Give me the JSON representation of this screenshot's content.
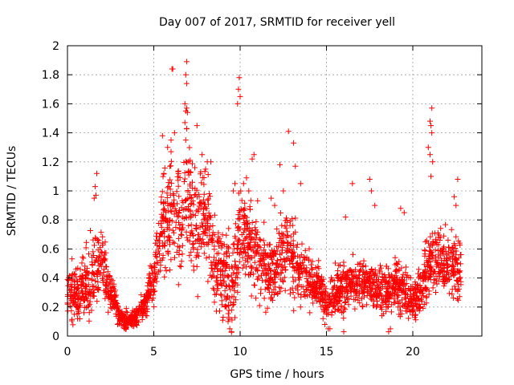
{
  "chart_data": {
    "type": "scatter",
    "title": "Day 007 of 2017, SRMTID for receiver yell",
    "xlabel": "GPS time / hours",
    "ylabel": "SRMTID / TECUs",
    "xlim": [
      0,
      24
    ],
    "ylim": [
      0,
      2
    ],
    "x_ticks": [
      0,
      5,
      10,
      15,
      20
    ],
    "x_tick_labels": [
      "0",
      "5",
      "10",
      "15",
      "20"
    ],
    "y_ticks": [
      0,
      0.2,
      0.4,
      0.6,
      0.8,
      1,
      1.2,
      1.4,
      1.6,
      1.8,
      2
    ],
    "y_tick_labels": [
      "0",
      "0.2",
      "0.4",
      "0.6",
      "0.8",
      "1",
      "1.2",
      "1.4",
      "1.6",
      "1.8",
      "2"
    ],
    "grid": true,
    "marker": "+",
    "marker_color": "#ff0000",
    "series": [
      {
        "name": "SRMTID",
        "envelope_hours": [
          0,
          0.5,
          1,
          1.5,
          2,
          2.5,
          3,
          3.5,
          4,
          4.5,
          5,
          5.5,
          6,
          6.5,
          7,
          7.5,
          8,
          8.5,
          9,
          9.5,
          10,
          10.5,
          11,
          11.5,
          12,
          12.5,
          13,
          13.5,
          14,
          14.5,
          15,
          15.5,
          16,
          16.5,
          17,
          17.5,
          18,
          18.5,
          19,
          19.5,
          20,
          20.5,
          21,
          21.5,
          22,
          22.5,
          22.8
        ],
        "envelope_typical": [
          0.28,
          0.32,
          0.34,
          0.42,
          0.52,
          0.3,
          0.14,
          0.1,
          0.15,
          0.22,
          0.42,
          0.75,
          0.85,
          0.75,
          0.95,
          0.7,
          0.85,
          0.55,
          0.5,
          0.3,
          0.75,
          0.7,
          0.55,
          0.45,
          0.45,
          0.6,
          0.55,
          0.45,
          0.4,
          0.35,
          0.22,
          0.3,
          0.35,
          0.38,
          0.35,
          0.38,
          0.32,
          0.3,
          0.35,
          0.3,
          0.26,
          0.32,
          0.5,
          0.55,
          0.5,
          0.48,
          0.45
        ],
        "envelope_spread": [
          0.15,
          0.18,
          0.2,
          0.25,
          0.18,
          0.12,
          0.07,
          0.05,
          0.07,
          0.1,
          0.2,
          0.3,
          0.35,
          0.35,
          0.35,
          0.35,
          0.3,
          0.3,
          0.3,
          0.25,
          0.3,
          0.3,
          0.25,
          0.22,
          0.2,
          0.25,
          0.25,
          0.2,
          0.18,
          0.15,
          0.1,
          0.15,
          0.15,
          0.15,
          0.15,
          0.15,
          0.15,
          0.15,
          0.15,
          0.15,
          0.12,
          0.15,
          0.2,
          0.2,
          0.2,
          0.2,
          0.2
        ],
        "values": [
          [
            1.7,
            1.12
          ],
          [
            1.6,
            1.03
          ],
          [
            1.65,
            0.97
          ],
          [
            1.55,
            0.95
          ],
          [
            5.5,
            1.38
          ],
          [
            5.8,
            1.3
          ],
          [
            6.0,
            1.27
          ],
          [
            6.2,
            1.4
          ],
          [
            6.0,
            1.35
          ],
          [
            6.05,
            1.84
          ],
          [
            6.1,
            1.84
          ],
          [
            6.9,
            1.89
          ],
          [
            6.85,
            1.8
          ],
          [
            6.9,
            1.74
          ],
          [
            6.8,
            1.6
          ],
          [
            6.9,
            1.57
          ],
          [
            6.85,
            1.55
          ],
          [
            6.95,
            1.54
          ],
          [
            6.8,
            1.47
          ],
          [
            6.9,
            1.43
          ],
          [
            6.85,
            1.35
          ],
          [
            7.5,
            1.45
          ],
          [
            7.8,
            1.25
          ],
          [
            8.1,
            1.2
          ],
          [
            8.3,
            1.2
          ],
          [
            8.0,
            1.15
          ],
          [
            7.3,
            0.6
          ],
          [
            7.6,
            0.55
          ],
          [
            9.2,
            0.2
          ],
          [
            9.3,
            0.1
          ],
          [
            9.4,
            0.05
          ],
          [
            9.5,
            0.03
          ],
          [
            9.35,
            0.13
          ],
          [
            9.6,
            1.0
          ],
          [
            9.7,
            1.05
          ],
          [
            9.95,
            1.78
          ],
          [
            9.9,
            1.7
          ],
          [
            10.0,
            1.65
          ],
          [
            9.85,
            1.6
          ],
          [
            10.2,
            1.05
          ],
          [
            10.5,
            1.0
          ],
          [
            10.8,
            1.25
          ],
          [
            10.7,
            1.22
          ],
          [
            11.8,
            0.95
          ],
          [
            12.0,
            0.9
          ],
          [
            12.3,
            1.18
          ],
          [
            12.5,
            1.0
          ],
          [
            12.8,
            1.41
          ],
          [
            13.1,
            1.33
          ],
          [
            13.2,
            1.17
          ],
          [
            13.5,
            1.05
          ],
          [
            14.9,
            0.08
          ],
          [
            15.1,
            0.05
          ],
          [
            14.8,
            0.12
          ],
          [
            15.2,
            0.05
          ],
          [
            16.0,
            0.03
          ],
          [
            16.5,
            1.05
          ],
          [
            16.1,
            0.82
          ],
          [
            17.5,
            1.08
          ],
          [
            17.6,
            1.0
          ],
          [
            17.8,
            0.9
          ],
          [
            18.6,
            0.03
          ],
          [
            18.7,
            0.05
          ],
          [
            19.3,
            0.88
          ],
          [
            19.5,
            0.85
          ],
          [
            19.2,
            0.15
          ],
          [
            21.1,
            1.57
          ],
          [
            21.0,
            1.48
          ],
          [
            21.05,
            1.45
          ],
          [
            21.1,
            1.4
          ],
          [
            20.9,
            1.3
          ],
          [
            21.0,
            1.25
          ],
          [
            21.15,
            1.2
          ],
          [
            21.05,
            1.1
          ],
          [
            22.4,
            0.96
          ],
          [
            22.6,
            1.08
          ],
          [
            22.5,
            0.9
          ]
        ]
      }
    ]
  }
}
